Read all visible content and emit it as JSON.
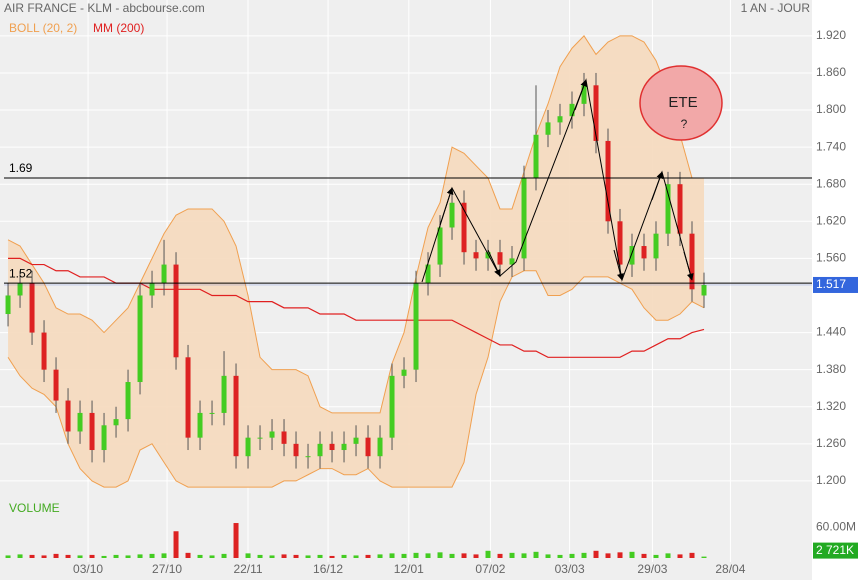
{
  "chart_data": {
    "type": "candlestick",
    "title": "AIR FRANCE - KLM - abcbourse.com",
    "subtitle": "1 AN - JOUR",
    "ylim": [
      1.174,
      1.978
    ],
    "yticks": [
      {
        "value": 1.92,
        "label": "1.920"
      },
      {
        "value": 1.86,
        "label": "1.860"
      },
      {
        "value": 1.8,
        "label": "1.800"
      },
      {
        "value": 1.74,
        "label": "1.740"
      },
      {
        "value": 1.68,
        "label": "1.680"
      },
      {
        "value": 1.62,
        "label": "1.620"
      },
      {
        "value": 1.56,
        "label": "1.560"
      },
      {
        "value": 1.44,
        "label": "1.440"
      },
      {
        "value": 1.38,
        "label": "1.380"
      },
      {
        "value": 1.32,
        "label": "1.320"
      },
      {
        "value": 1.26,
        "label": "1.260"
      },
      {
        "value": 1.2,
        "label": "1.200"
      }
    ],
    "xlim": [
      -0.67,
      67
    ],
    "xticks": [
      {
        "value": 6.67,
        "label": "03/10"
      },
      {
        "value": 13.25,
        "label": "27/10"
      },
      {
        "value": 20,
        "label": "22/11"
      },
      {
        "value": 26.67,
        "label": "16/12"
      },
      {
        "value": 33.4,
        "label": "12/01"
      },
      {
        "value": 40.2,
        "label": "07/02"
      },
      {
        "value": 46.8,
        "label": "03/03"
      },
      {
        "value": 53.7,
        "label": "29/03"
      },
      {
        "value": 60.2,
        "label": "28/04"
      }
    ],
    "up_color": "#44cc22",
    "down_color": "#dd2222",
    "ohlc": {
      "open": [
        1.47,
        1.5,
        1.52,
        1.44,
        1.38,
        1.33,
        1.28,
        1.31,
        1.25,
        1.29,
        1.3,
        1.36,
        1.5,
        1.52,
        1.55,
        1.4,
        1.27,
        1.31,
        1.31,
        1.37,
        1.24,
        1.27,
        1.27,
        1.28,
        1.26,
        1.24,
        1.24,
        1.26,
        1.25,
        1.26,
        1.27,
        1.24,
        1.27,
        1.37,
        1.38,
        1.52,
        1.55,
        1.61,
        1.65,
        1.57,
        1.56,
        1.57,
        1.55,
        1.56,
        1.69,
        1.76,
        1.78,
        1.79,
        1.81,
        1.84,
        1.75,
        1.62,
        1.55,
        1.58,
        1.56,
        1.6,
        1.68,
        1.6,
        1.5
      ],
      "high": [
        1.52,
        1.54,
        1.54,
        1.46,
        1.4,
        1.35,
        1.33,
        1.33,
        1.31,
        1.32,
        1.38,
        1.52,
        1.54,
        1.59,
        1.57,
        1.42,
        1.33,
        1.33,
        1.41,
        1.39,
        1.29,
        1.29,
        1.3,
        1.3,
        1.28,
        1.26,
        1.28,
        1.28,
        1.28,
        1.29,
        1.29,
        1.29,
        1.39,
        1.4,
        1.54,
        1.57,
        1.63,
        1.67,
        1.67,
        1.59,
        1.59,
        1.59,
        1.58,
        1.71,
        1.84,
        1.8,
        1.81,
        1.83,
        1.86,
        1.86,
        1.77,
        1.64,
        1.6,
        1.6,
        1.62,
        1.7,
        1.7,
        1.62,
        1.537
      ],
      "low": [
        1.45,
        1.48,
        1.42,
        1.36,
        1.31,
        1.26,
        1.26,
        1.23,
        1.23,
        1.27,
        1.28,
        1.34,
        1.48,
        1.5,
        1.38,
        1.25,
        1.25,
        1.29,
        1.29,
        1.22,
        1.22,
        1.25,
        1.25,
        1.24,
        1.22,
        1.22,
        1.22,
        1.23,
        1.23,
        1.24,
        1.22,
        1.22,
        1.25,
        1.35,
        1.36,
        1.5,
        1.53,
        1.59,
        1.55,
        1.54,
        1.54,
        1.53,
        1.53,
        1.54,
        1.67,
        1.74,
        1.76,
        1.77,
        1.79,
        1.73,
        1.6,
        1.53,
        1.53,
        1.54,
        1.54,
        1.58,
        1.58,
        1.49,
        1.48
      ],
      "close": [
        1.5,
        1.52,
        1.44,
        1.38,
        1.33,
        1.28,
        1.31,
        1.25,
        1.29,
        1.3,
        1.36,
        1.5,
        1.52,
        1.55,
        1.4,
        1.27,
        1.31,
        1.31,
        1.37,
        1.24,
        1.27,
        1.27,
        1.28,
        1.26,
        1.24,
        1.24,
        1.26,
        1.25,
        1.26,
        1.27,
        1.24,
        1.27,
        1.37,
        1.38,
        1.52,
        1.55,
        1.61,
        1.65,
        1.57,
        1.56,
        1.57,
        1.55,
        1.56,
        1.69,
        1.76,
        1.78,
        1.79,
        1.81,
        1.84,
        1.75,
        1.62,
        1.55,
        1.58,
        1.56,
        1.6,
        1.68,
        1.6,
        1.51,
        1.517
      ]
    },
    "bollinger": {
      "name": "BOLL (20, 2)",
      "color": "#f0a050",
      "upper": [
        1.59,
        1.58,
        1.55,
        1.52,
        1.48,
        1.47,
        1.47,
        1.46,
        1.44,
        1.46,
        1.48,
        1.52,
        1.56,
        1.6,
        1.63,
        1.64,
        1.64,
        1.64,
        1.62,
        1.58,
        1.5,
        1.4,
        1.38,
        1.38,
        1.38,
        1.37,
        1.32,
        1.31,
        1.31,
        1.31,
        1.31,
        1.31,
        1.39,
        1.44,
        1.53,
        1.61,
        1.65,
        1.74,
        1.73,
        1.71,
        1.69,
        1.64,
        1.64,
        1.7,
        1.76,
        1.81,
        1.87,
        1.9,
        1.92,
        1.89,
        1.91,
        1.92,
        1.92,
        1.91,
        1.88,
        1.83,
        1.76,
        1.69,
        1.69
      ],
      "lower": [
        1.4,
        1.37,
        1.35,
        1.34,
        1.32,
        1.26,
        1.22,
        1.2,
        1.19,
        1.19,
        1.2,
        1.25,
        1.26,
        1.23,
        1.2,
        1.19,
        1.19,
        1.19,
        1.19,
        1.19,
        1.19,
        1.19,
        1.19,
        1.2,
        1.2,
        1.21,
        1.22,
        1.22,
        1.21,
        1.21,
        1.22,
        1.2,
        1.19,
        1.19,
        1.19,
        1.19,
        1.19,
        1.19,
        1.23,
        1.34,
        1.4,
        1.49,
        1.53,
        1.54,
        1.54,
        1.5,
        1.5,
        1.51,
        1.53,
        1.53,
        1.53,
        1.52,
        1.51,
        1.48,
        1.46,
        1.46,
        1.47,
        1.49,
        1.48
      ]
    },
    "ma": {
      "name": "MM (200)",
      "color": "#e02020",
      "values": [
        1.56,
        1.56,
        1.55,
        1.55,
        1.54,
        1.54,
        1.53,
        1.53,
        1.53,
        1.52,
        1.52,
        1.52,
        1.51,
        1.51,
        1.51,
        1.51,
        1.51,
        1.5,
        1.5,
        1.5,
        1.49,
        1.49,
        1.49,
        1.48,
        1.48,
        1.48,
        1.47,
        1.47,
        1.47,
        1.46,
        1.46,
        1.46,
        1.46,
        1.46,
        1.46,
        1.46,
        1.46,
        1.46,
        1.45,
        1.44,
        1.43,
        1.42,
        1.42,
        1.41,
        1.41,
        1.4,
        1.4,
        1.4,
        1.4,
        1.4,
        1.4,
        1.4,
        1.41,
        1.41,
        1.42,
        1.43,
        1.43,
        1.44,
        1.445
      ]
    },
    "levels": [
      1.69,
      1.52
    ],
    "volume": {
      "name": "VOLUME",
      "ylim": [
        0,
        70000000
      ],
      "yticks": [
        {
          "value": 60000000,
          "label": "60.00M"
        }
      ],
      "values": [
        5000000,
        7000000,
        6000000,
        5000000,
        8000000,
        6000000,
        5000000,
        6000000,
        4000000,
        6000000,
        5000000,
        7000000,
        8000000,
        9000000,
        52000000,
        10000000,
        6000000,
        5000000,
        8000000,
        68000000,
        9000000,
        6000000,
        5000000,
        7000000,
        6000000,
        5000000,
        6000000,
        4000000,
        6000000,
        5000000,
        6000000,
        7000000,
        9000000,
        8000000,
        10000000,
        9000000,
        11000000,
        8000000,
        9000000,
        7000000,
        14000000,
        8000000,
        10000000,
        9000000,
        12000000,
        7000000,
        6000000,
        8000000,
        10000000,
        14000000,
        9000000,
        11000000,
        12000000,
        8000000,
        6000000,
        9000000,
        7000000,
        10000000,
        2721000
      ],
      "value_labels": [
        null,
        null,
        null,
        null,
        null,
        null,
        null,
        null,
        null,
        null,
        null,
        null,
        null,
        null,
        null,
        null,
        null,
        null,
        null,
        null,
        null,
        null,
        null,
        null,
        null,
        null,
        null,
        null,
        null,
        null,
        null,
        null,
        null,
        null,
        null,
        null,
        null,
        null,
        null,
        null,
        null,
        null,
        null,
        null,
        null,
        null,
        null,
        null,
        null,
        null,
        null,
        null,
        null,
        null,
        null,
        null,
        null,
        null,
        "2 721K"
      ]
    },
    "annotations": [
      {
        "text": "ETE"
      },
      {
        "text": "?"
      }
    ]
  }
}
